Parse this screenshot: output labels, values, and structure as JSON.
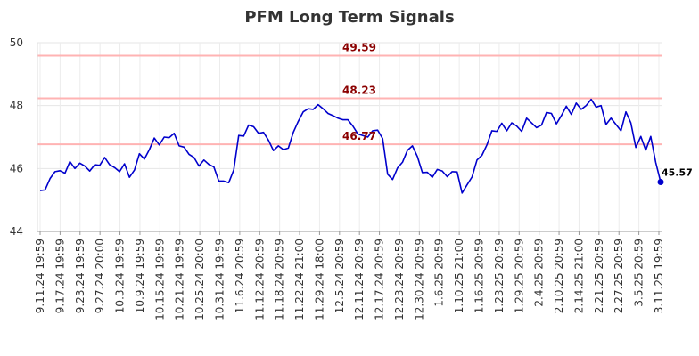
{
  "chart_data": {
    "type": "line",
    "title": "PFM Long Term Signals",
    "xlabel": "",
    "ylabel": "",
    "ylim": [
      44,
      50
    ],
    "yticks": [
      44,
      46,
      48,
      50
    ],
    "grid": true,
    "x_tick_labels": [
      "9.11.24 19:59",
      "9.17.24 19:59",
      "9.23.24 19:59",
      "9.27.24 20:00",
      "10.3.24 19:59",
      "10.9.24 19:59",
      "10.15.24 19:59",
      "10.21.24 19:59",
      "10.25.24 20:00",
      "10.31.24 19:59",
      "11.6.24 20:59",
      "11.12.24 20:59",
      "11.18.24 20:59",
      "11.22.24 21:00",
      "11.29.24 18:00",
      "12.5.24 20:59",
      "12.11.24 20:59",
      "12.17.24 20:59",
      "12.23.24 20:59",
      "12.30.24 20:59",
      "1.6.25 20:59",
      "1.10.25 21:00",
      "1.16.25 20:59",
      "1.23.25 20:59",
      "1.29.25 20:59",
      "2.4.25 20:59",
      "2.10.25 20:59",
      "2.14.25 21:00",
      "2.21.25 20:59",
      "2.27.25 20:59",
      "3.5.25 20:59",
      "3.11.25 19:59"
    ],
    "horizontal_lines": [
      {
        "value": 49.59,
        "label": "49.59",
        "color": "#ffb3b3"
      },
      {
        "value": 48.23,
        "label": "48.23",
        "color": "#ffb3b3"
      },
      {
        "value": 46.77,
        "label": "46.77",
        "color": "#ffb3b3"
      }
    ],
    "series": [
      {
        "color": "#0000cc",
        "values": [
          45.3,
          45.32,
          45.68,
          45.9,
          45.93,
          45.85,
          46.22,
          46.0,
          46.17,
          46.08,
          45.92,
          46.12,
          46.1,
          46.35,
          46.12,
          46.03,
          45.9,
          46.15,
          45.72,
          45.95,
          46.47,
          46.3,
          46.6,
          46.97,
          46.75,
          47.0,
          46.98,
          47.12,
          46.72,
          46.68,
          46.45,
          46.35,
          46.08,
          46.27,
          46.13,
          46.05,
          45.6,
          45.6,
          45.55,
          45.95,
          47.05,
          47.03,
          47.38,
          47.33,
          47.12,
          47.15,
          46.9,
          46.57,
          46.72,
          46.6,
          46.65,
          47.15,
          47.5,
          47.8,
          47.9,
          47.88,
          48.03,
          47.9,
          47.75,
          47.68,
          47.6,
          47.55,
          47.55,
          47.35,
          47.1,
          47.05,
          47.0,
          47.2,
          47.22,
          46.95,
          45.82,
          45.65,
          46.02,
          46.2,
          46.58,
          46.72,
          46.38,
          45.87,
          45.88,
          45.72,
          45.97,
          45.92,
          45.74,
          45.9,
          45.89,
          45.22,
          45.48,
          45.73,
          46.27,
          46.42,
          46.75,
          47.2,
          47.18,
          47.44,
          47.2,
          47.45,
          47.35,
          47.18,
          47.6,
          47.45,
          47.3,
          47.38,
          47.78,
          47.75,
          47.42,
          47.68,
          47.98,
          47.72,
          48.08,
          47.88,
          48.0,
          48.2,
          47.95,
          48.0,
          47.4,
          47.6,
          47.4,
          47.2,
          47.8,
          47.45,
          46.67,
          47.02,
          46.58,
          47.02,
          46.2,
          45.57
        ]
      }
    ],
    "last_point_label": "45.57"
  }
}
